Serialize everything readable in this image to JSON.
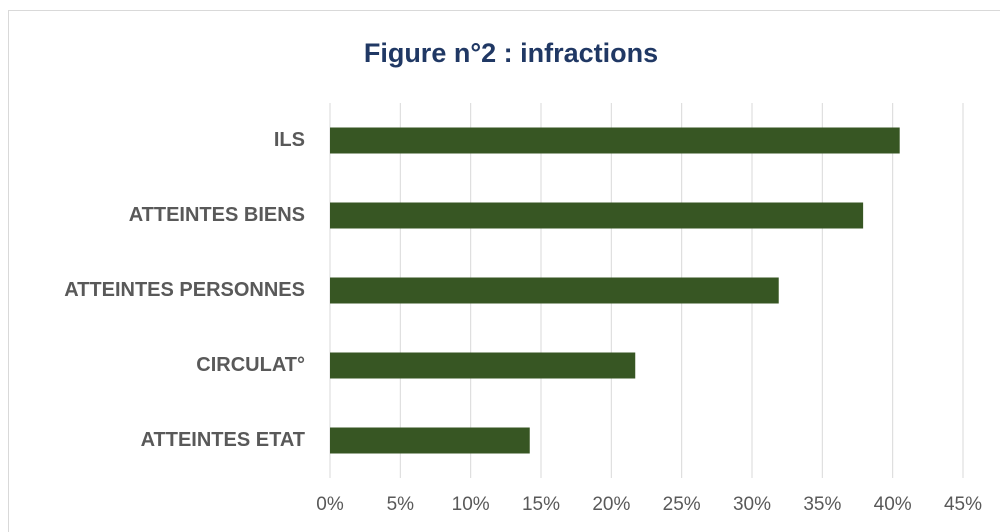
{
  "chart_data": {
    "type": "bar",
    "orientation": "horizontal",
    "title": "Figure n°2 : infractions",
    "categories": [
      "ILS",
      "ATTEINTES BIENS",
      "ATTEINTES PERSONNES",
      "CIRCULAT°",
      "ATTEINTES ETAT"
    ],
    "values": [
      40.5,
      37.9,
      31.9,
      21.7,
      14.2
    ],
    "color": "#375623",
    "xlim": [
      0,
      45
    ],
    "xticks": [
      {
        "value": 0,
        "label": "0%"
      },
      {
        "value": 5,
        "label": "5%"
      },
      {
        "value": 10,
        "label": "10%"
      },
      {
        "value": 15,
        "label": "15%"
      },
      {
        "value": 20,
        "label": "20%"
      },
      {
        "value": 25,
        "label": "25%"
      },
      {
        "value": 30,
        "label": "30%"
      },
      {
        "value": 35,
        "label": "35%"
      },
      {
        "value": 40,
        "label": "40%"
      },
      {
        "value": 45,
        "label": "45%"
      }
    ],
    "grid": true
  }
}
